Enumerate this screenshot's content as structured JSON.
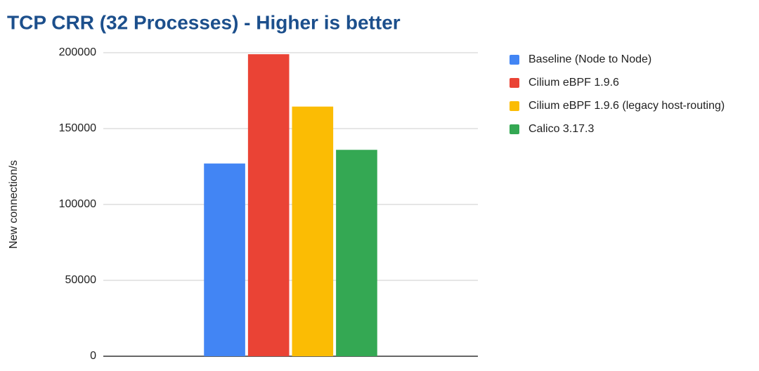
{
  "chart_data": {
    "type": "bar",
    "title": "TCP CRR (32 Processes) - Higher is better",
    "y_label": "New connection/s",
    "categories": [
      null
    ],
    "series": [
      {
        "name": "Baseline (Node to Node)",
        "color": "#4285f4",
        "values": [
          127000
        ]
      },
      {
        "name": "Cilium eBPF 1.9.6",
        "color": "#ea4335",
        "values": [
          199000
        ]
      },
      {
        "name": "Cilium eBPF 1.9.6 (legacy host-routing)",
        "color": "#fbbc04",
        "values": [
          164500
        ]
      },
      {
        "name": "Calico 3.17.3",
        "color": "#34a853",
        "values": [
          136000
        ]
      }
    ],
    "ylim": [
      0,
      200000
    ],
    "yticks": [
      0,
      50000,
      100000,
      150000,
      200000
    ],
    "grid": true,
    "legend": "right"
  }
}
